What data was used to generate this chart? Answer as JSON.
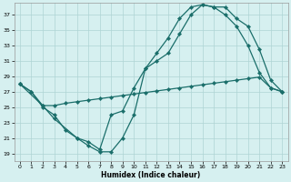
{
  "xlabel": "Humidex (Indice chaleur)",
  "background_color": "#d6f0f0",
  "grid_color": "#aed4d4",
  "line_color": "#1a6e6a",
  "xlim": [
    -0.5,
    23.5
  ],
  "ylim": [
    18,
    38.5
  ],
  "yticks": [
    19,
    21,
    23,
    25,
    27,
    29,
    31,
    33,
    35,
    37
  ],
  "xticks": [
    0,
    1,
    2,
    3,
    4,
    5,
    6,
    7,
    8,
    9,
    10,
    11,
    12,
    13,
    14,
    15,
    16,
    17,
    18,
    19,
    20,
    21,
    22,
    23
  ],
  "line1_x": [
    0,
    1,
    2,
    3,
    4,
    5,
    6,
    7,
    8,
    9,
    10,
    11,
    12,
    13,
    14,
    15,
    16,
    17,
    18,
    19,
    20,
    21,
    22,
    23
  ],
  "line1_y": [
    28.0,
    27.0,
    25.0,
    24.0,
    22.0,
    21.0,
    20.0,
    19.2,
    19.2,
    21.0,
    24.0,
    30.0,
    32.0,
    34.0,
    36.5,
    38.0,
    38.3,
    38.0,
    38.0,
    36.5,
    35.5,
    32.5,
    28.5,
    27.0
  ],
  "line2_x": [
    0,
    2,
    3,
    5,
    6,
    7,
    8,
    9,
    10,
    11,
    12,
    13,
    14,
    15,
    16,
    17,
    18,
    19,
    20,
    21,
    22,
    23
  ],
  "line2_y": [
    28.0,
    25.2,
    23.5,
    21.0,
    20.5,
    19.5,
    24.0,
    24.5,
    27.5,
    30.0,
    31.0,
    32.0,
    34.5,
    37.0,
    38.3,
    38.0,
    37.0,
    35.5,
    33.0,
    29.5,
    27.5,
    27.0
  ],
  "line3_x": [
    0,
    1,
    2,
    3,
    4,
    5,
    6,
    7,
    8,
    9,
    10,
    11,
    12,
    13,
    14,
    15,
    16,
    17,
    18,
    19,
    20,
    21,
    22,
    23
  ],
  "line3_y": [
    28.0,
    27.0,
    25.2,
    25.2,
    25.5,
    25.7,
    25.9,
    26.1,
    26.3,
    26.5,
    26.7,
    26.9,
    27.1,
    27.3,
    27.5,
    27.7,
    27.9,
    28.1,
    28.3,
    28.5,
    28.7,
    28.9,
    27.5,
    27.0
  ]
}
